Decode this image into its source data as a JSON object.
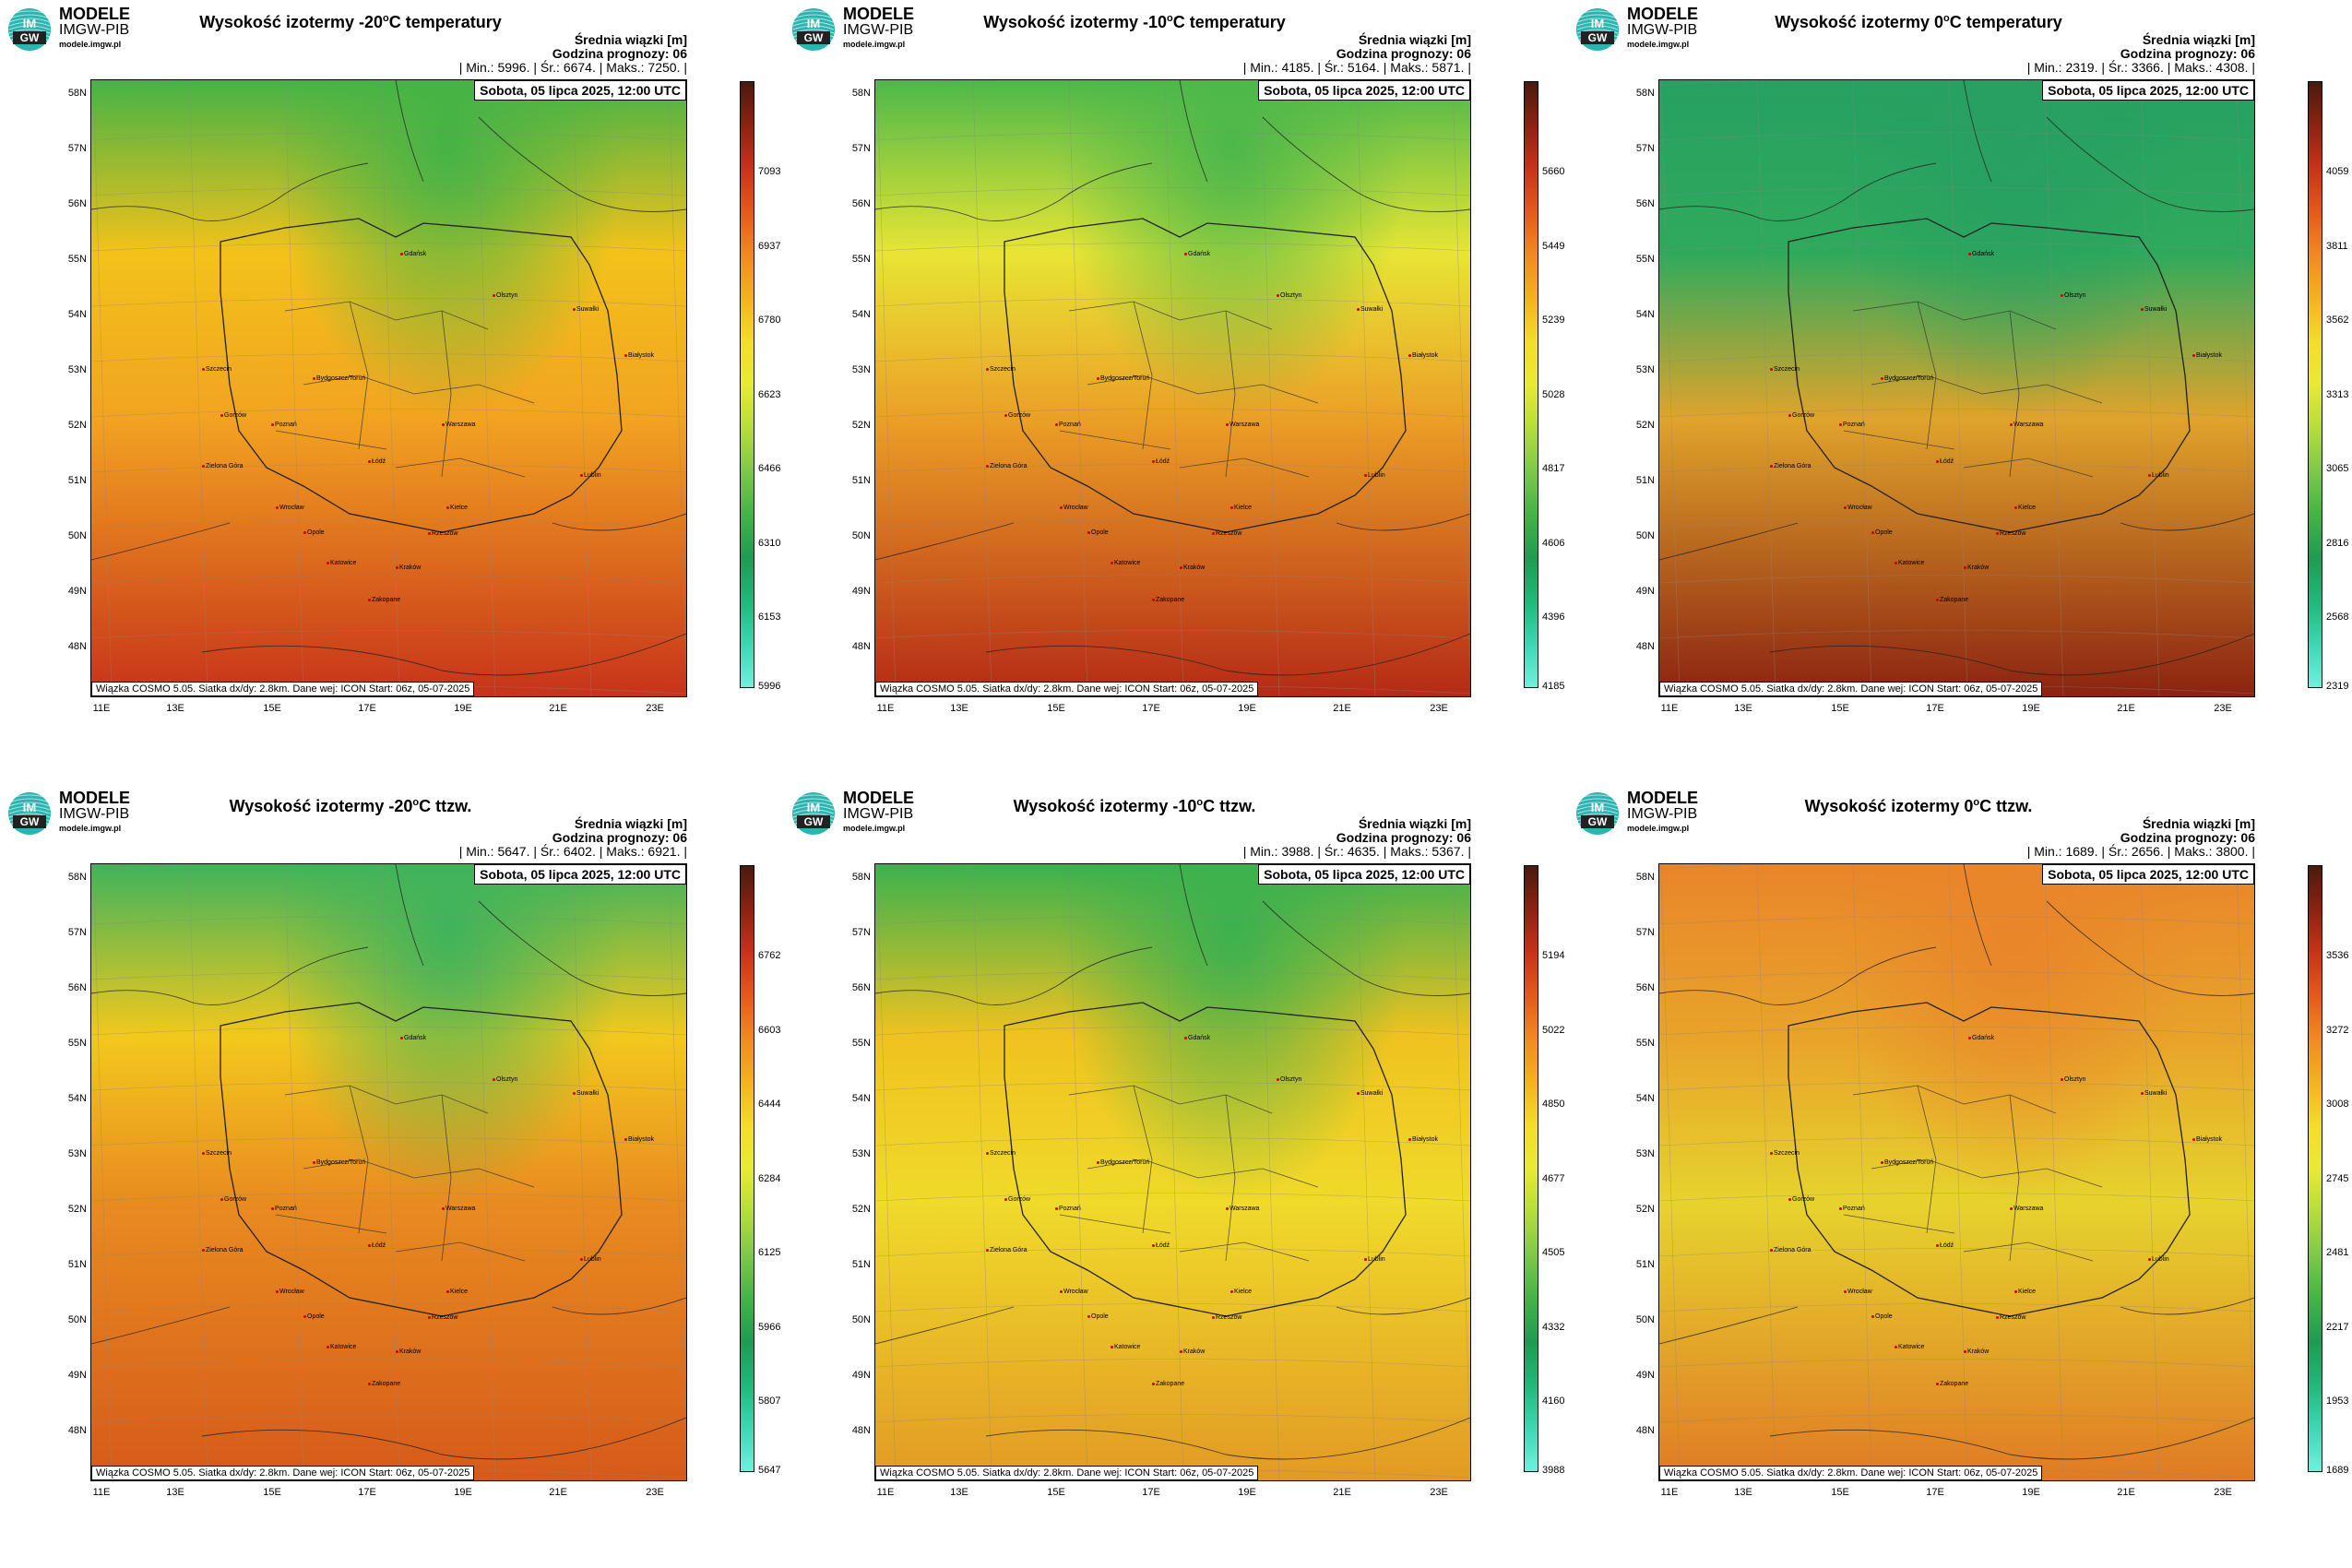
{
  "brand": {
    "line1": "MODELE",
    "line2": "IMGW-PIB",
    "line3": "modele.imgw.pl",
    "logo_text_top": "IM",
    "logo_text_bottom": "GW"
  },
  "common": {
    "units_label": "Średnia wiązki [m]",
    "forecast_hour": "Godzina prognozy: 06",
    "valid_date": "Sobota, 05 lipca 2025, 12:00 UTC",
    "footer": "Wiązka COSMO 5.05. Siatka dx/dy: 2.8km. Dane wej: ICON Start: 06z, 05-07-2025",
    "lat_labels": [
      "58N",
      "57N",
      "56N",
      "55N",
      "54N",
      "53N",
      "52N",
      "51N",
      "50N",
      "49N",
      "48N"
    ],
    "lon_labels": [
      "11E",
      "13E",
      "15E",
      "17E",
      "19E",
      "21E",
      "23E"
    ],
    "stats_labels": {
      "min": "| Min.:",
      "avg": "| Śr.:",
      "max": "| Maks.:"
    },
    "cities": [
      "Gdańsk",
      "Olsztyn",
      "Suwałki",
      "Białystok",
      "Szczecin",
      "Bydgoszcz/Toruń",
      "Gorzów",
      "Poznań",
      "Warszawa",
      "Zielona Góra",
      "Łódź",
      "Lublin",
      "Wrocław",
      "Kielce",
      "Opole",
      "Rzeszów",
      "Katowice",
      "Kraków",
      "Zakopane"
    ]
  },
  "panels": [
    {
      "title_a": "Wysokość izotermy -20",
      "title_sup": "o",
      "title_b": "C temperatury",
      "min": "5996.",
      "avg": "6674.",
      "max": "7250.",
      "colorbar_ticks": [
        "7093",
        "6937",
        "6780",
        "6623",
        "6466",
        "6310",
        "6153",
        "5996"
      ],
      "colors": {
        "top": "#f3c21a",
        "mid": "#f2a321",
        "bottom": "#c7331a",
        "north": "#45b346"
      }
    },
    {
      "title_a": "Wysokość izotermy -10",
      "title_sup": "o",
      "title_b": "C temperatury",
      "min": "4185.",
      "avg": "5164.",
      "max": "5871.",
      "colorbar_ticks": [
        "5660",
        "5449",
        "5239",
        "5028",
        "4817",
        "4606",
        "4396",
        "4185"
      ],
      "colors": {
        "top": "#e8e534",
        "mid": "#eb9f26",
        "bottom": "#b52a16",
        "north": "#4db84a"
      }
    },
    {
      "title_a": "Wysokość izotermy 0",
      "title_sup": "o",
      "title_b": "C temperatury",
      "min": "2319.",
      "avg": "3366.",
      "max": "4308.",
      "colorbar_ticks": [
        "4059",
        "3811",
        "3562",
        "3313",
        "3065",
        "2816",
        "2568",
        "2319"
      ],
      "colors": {
        "top": "#2faa5c",
        "mid": "#e0a32b",
        "bottom": "#8b2311",
        "north": "#27a061"
      }
    },
    {
      "title_a": "Wysokość izotermy -20",
      "title_sup": "o",
      "title_b": "C ttzw.",
      "min": "5647.",
      "avg": "6402.",
      "max": "6921.",
      "colorbar_ticks": [
        "6762",
        "6603",
        "6444",
        "6284",
        "6125",
        "5966",
        "5807",
        "5647"
      ],
      "colors": {
        "top": "#f3c81c",
        "mid": "#e88b20",
        "bottom": "#d65a1a",
        "north": "#3fb35b"
      }
    },
    {
      "title_a": "Wysokość izotermy -10",
      "title_sup": "o",
      "title_b": "C ttzw.",
      "min": "3988.",
      "avg": "4635.",
      "max": "5367.",
      "colorbar_ticks": [
        "5194",
        "5022",
        "4850",
        "4677",
        "4505",
        "4332",
        "4160",
        "3988"
      ],
      "colors": {
        "top": "#f0c21f",
        "mid": "#f0da2a",
        "bottom": "#e29a24",
        "north": "#3bb14e"
      }
    },
    {
      "title_a": "Wysokość izotermy 0",
      "title_sup": "o",
      "title_b": "C ttzw.",
      "min": "1689.",
      "avg": "2656.",
      "max": "3800.",
      "colorbar_ticks": [
        "3536",
        "3272",
        "3008",
        "2745",
        "2481",
        "2217",
        "1953",
        "1689"
      ],
      "colors": {
        "top": "#e8a32a",
        "mid": "#e6d32d",
        "bottom": "#e07a24",
        "north": "#e9852a"
      }
    }
  ]
}
